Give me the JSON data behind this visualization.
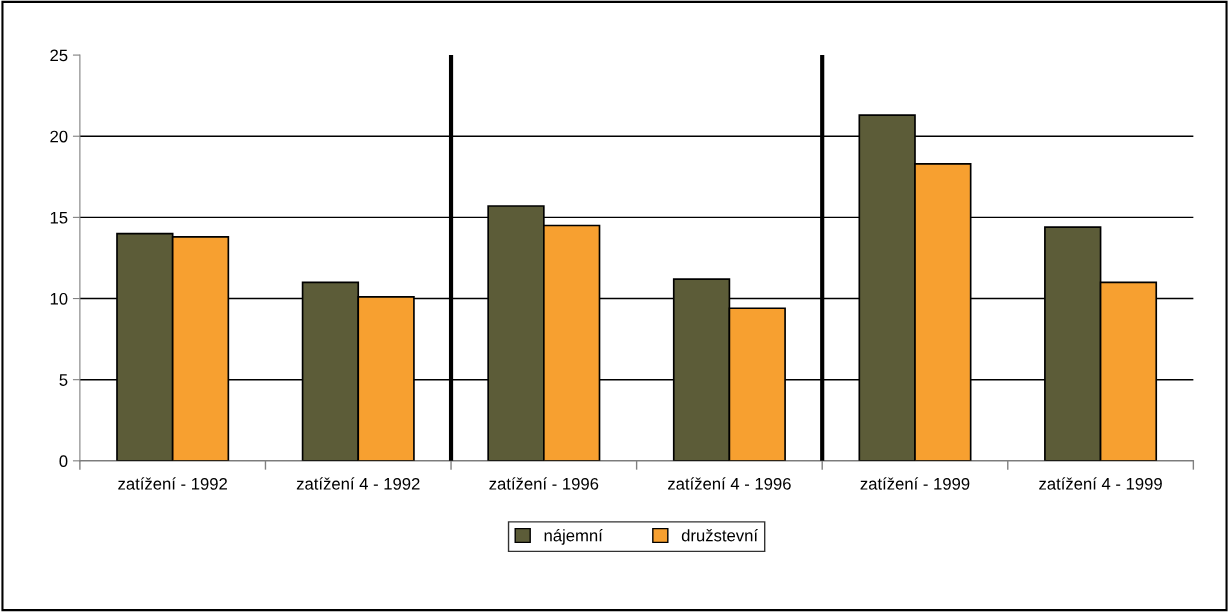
{
  "chart_data": {
    "type": "bar",
    "categories": [
      "zatížení - 1992",
      "zatížení 4 - 1992",
      "zatížení - 1996",
      "zatížení 4 - 1996",
      "zatížení - 1999",
      "zatížení 4 - 1999"
    ],
    "series": [
      {
        "name": "nájemní",
        "color": "#5c5c38",
        "values": [
          14.0,
          11.0,
          15.7,
          11.2,
          21.3,
          14.4
        ]
      },
      {
        "name": "družstevní",
        "color": "#f7a030",
        "values": [
          13.8,
          10.1,
          14.5,
          9.4,
          18.3,
          11.0
        ]
      }
    ],
    "ylim": [
      0,
      25
    ],
    "yticks": [
      0,
      5,
      10,
      15,
      20,
      25
    ],
    "grid": "y",
    "legend": "bottom"
  }
}
